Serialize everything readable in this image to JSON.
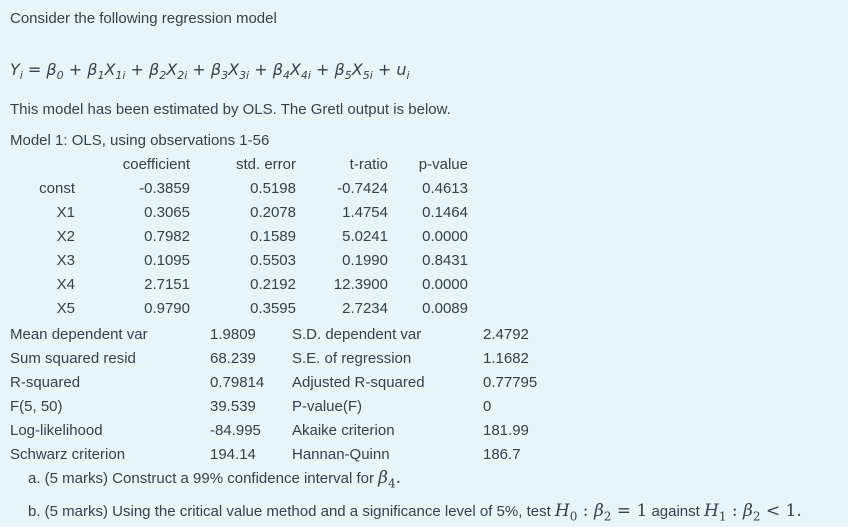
{
  "colors": {
    "background": "#e7f5f7",
    "text": "#33424e"
  },
  "page": {
    "intro": "Consider the following regression model",
    "estimated_note": "This model has been estimated by OLS. The Gretl output is below.",
    "model_title": "Model 1: OLS, using observations 1-56"
  },
  "equation": {
    "parts": [
      {
        "t": "Y",
        "s": "i"
      },
      {
        "t": " = "
      },
      {
        "t": "β",
        "s": "0"
      },
      {
        "t": " + "
      },
      {
        "t": "β",
        "s": "1"
      },
      {
        "t": "X",
        "s": "1i"
      },
      {
        "t": " + "
      },
      {
        "t": "β",
        "s": "2"
      },
      {
        "t": "X",
        "s": "2i"
      },
      {
        "t": " + "
      },
      {
        "t": "β",
        "s": "3"
      },
      {
        "t": "X",
        "s": "3i"
      },
      {
        "t": " + "
      },
      {
        "t": "β",
        "s": "4"
      },
      {
        "t": "X",
        "s": "4i"
      },
      {
        "t": " + "
      },
      {
        "t": "β",
        "s": "5"
      },
      {
        "t": "X",
        "s": "5i"
      },
      {
        "t": " + "
      },
      {
        "t": "u",
        "s": "i"
      }
    ]
  },
  "coef_table": {
    "headers": [
      "coefficient",
      "std. error",
      "t-ratio",
      "p-value"
    ],
    "rows": [
      {
        "label": "const",
        "coefficient": "-0.3859",
        "std_error": "0.5198",
        "t_ratio": "-0.7424",
        "p_value": "0.4613"
      },
      {
        "label": "X1",
        "coefficient": "0.3065",
        "std_error": "0.2078",
        "t_ratio": "1.4754",
        "p_value": "0.1464"
      },
      {
        "label": "X2",
        "coefficient": "0.7982",
        "std_error": "0.1589",
        "t_ratio": "5.0241",
        "p_value": "0.0000"
      },
      {
        "label": "X3",
        "coefficient": "0.1095",
        "std_error": "0.5503",
        "t_ratio": "0.1990",
        "p_value": "0.8431"
      },
      {
        "label": "X4",
        "coefficient": "2.7151",
        "std_error": "0.2192",
        "t_ratio": "12.3900",
        "p_value": "0.0000"
      },
      {
        "label": "X5",
        "coefficient": "0.9790",
        "std_error": "0.3595",
        "t_ratio": "2.7234",
        "p_value": "0.0089"
      }
    ]
  },
  "stats": {
    "rows": [
      {
        "label1": "Mean dependent var",
        "value1": "1.9809",
        "label2": "S.D. dependent var",
        "value2": "2.4792"
      },
      {
        "label1": "Sum squared resid",
        "value1": "68.239",
        "label2": "S.E. of regression",
        "value2": "1.1682"
      },
      {
        "label1": "R-squared",
        "value1": "0.79814",
        "label2": "Adjusted R-squared",
        "value2": "0.77795"
      },
      {
        "label1": "F(5, 50)",
        "value1": "39.539",
        "label2": "P-value(F)",
        "value2": "0"
      },
      {
        "label1": "Log-likelihood",
        "value1": "-84.995",
        "label2": "Akaike criterion",
        "value2": "181.99"
      },
      {
        "label1": "Schwarz criterion",
        "value1": "194.14",
        "label2": "Hannan-Quinn",
        "value2": "186.7"
      }
    ]
  },
  "questions": {
    "a": {
      "parts": [
        {
          "t": "a. (5 marks) Construct a 99% confidence interval for "
        },
        {
          "t": "β",
          "s": "4",
          "f": "math"
        },
        {
          "t": ".",
          "f": "mathu"
        }
      ]
    },
    "b": {
      "parts": [
        {
          "t": "b. (5 marks) Using the critical value method and a significance level of 5%, test "
        },
        {
          "t": "H",
          "s": "0",
          "f": "math"
        },
        {
          "t": " : ",
          "f": "mathu"
        },
        {
          "t": "β",
          "s": "2",
          "f": "math"
        },
        {
          "t": " = 1",
          "f": "mathu"
        },
        {
          "t": " against "
        },
        {
          "t": "H",
          "s": "1",
          "f": "math"
        },
        {
          "t": " : ",
          "f": "mathu"
        },
        {
          "t": "β",
          "s": "2",
          "f": "math"
        },
        {
          "t": " < 1.",
          "f": "mathu"
        }
      ]
    }
  }
}
